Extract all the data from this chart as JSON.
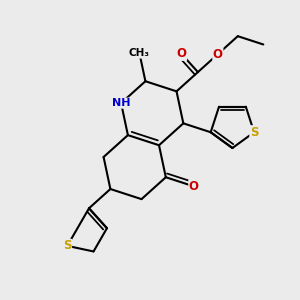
{
  "background_color": "#ebebeb",
  "figsize": [
    3.0,
    3.0
  ],
  "dpi": 100,
  "bond_color": "#000000",
  "bond_width": 1.5,
  "S_color": "#c8a000",
  "N_color": "#0000cc",
  "O_color": "#cc0000",
  "C_color": "#000000",
  "font_size_atom": 8.5,
  "xlim": [
    -4.0,
    5.0
  ],
  "ylim": [
    -4.5,
    4.5
  ]
}
